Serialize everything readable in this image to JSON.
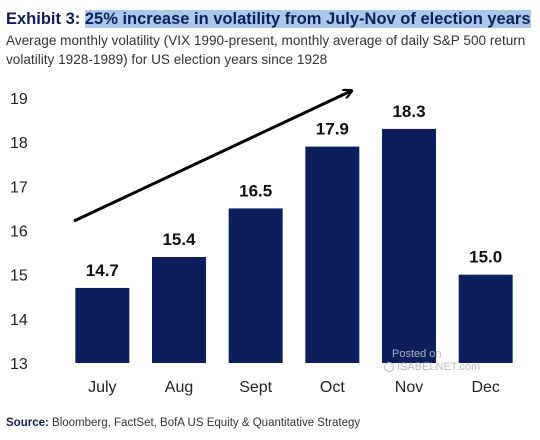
{
  "header": {
    "title_prefix": "Exhibit 3: ",
    "title_highlight": "25% increase in volatility from July-Nov of election years",
    "subtitle": "Average monthly volatility (VIX 1990-present, monthly average of daily S&P 500 return volatility 1928-1989) for US election years since 1928"
  },
  "chart_data": {
    "type": "bar",
    "categories": [
      "July",
      "Aug",
      "Sept",
      "Oct",
      "Nov",
      "Dec"
    ],
    "values": [
      14.7,
      15.4,
      16.5,
      17.9,
      18.3,
      15.0
    ],
    "value_labels": [
      "14.7",
      "15.4",
      "16.5",
      "17.9",
      "18.3",
      "15.0"
    ],
    "ylim": [
      13,
      19
    ],
    "yticks": [
      13,
      14,
      15,
      16,
      17,
      18,
      19
    ],
    "grid": false,
    "bar_color": "#0c1f5c",
    "annotation": "upward trend arrow from July to Nov"
  },
  "source": {
    "label": "Source:",
    "text": " Bloomberg, FactSet, BofA US Equity & Quantitative Strategy"
  },
  "watermark": {
    "line1": "Posted on",
    "line2": "ISABELNET.com"
  }
}
